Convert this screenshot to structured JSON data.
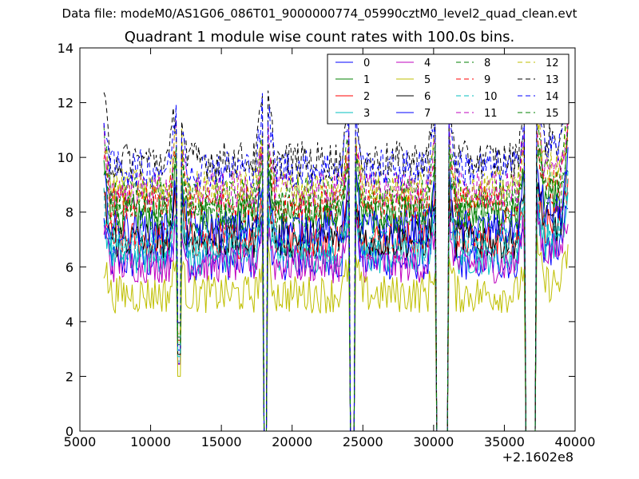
{
  "figure": {
    "suptitle": "Data file: modeM0/AS1G06_086T01_9000000774_05990cztM0_level2_quad_clean.evt",
    "title": "Quadrant 1 module wise count rates with 100.0s bins.",
    "x_offset_label": "+2.1602e8"
  },
  "chart_data": {
    "type": "line",
    "title": "Quadrant 1 module wise count rates with 100.0s bins.",
    "xlabel": "",
    "ylabel": "",
    "xlim": [
      5000,
      40000
    ],
    "ylim": [
      0,
      14
    ],
    "x_offset": 216020000,
    "x_ticks": [
      5000,
      10000,
      15000,
      20000,
      25000,
      30000,
      35000,
      40000
    ],
    "x_tick_labels": [
      "5000",
      "10000",
      "15000",
      "20000",
      "25000",
      "30000",
      "35000",
      "40000"
    ],
    "y_ticks": [
      0,
      2,
      4,
      6,
      8,
      10,
      12,
      14
    ],
    "y_tick_labels": [
      "0",
      "2",
      "4",
      "6",
      "8",
      "10",
      "12",
      "14"
    ],
    "grid": false,
    "legend_position": "top-right",
    "bin_size_s": 100,
    "segments": [
      [
        6700,
        11800
      ],
      [
        12100,
        17900
      ],
      [
        18300,
        24000
      ],
      [
        24500,
        30100
      ],
      [
        31100,
        36400
      ],
      [
        37300,
        39500
      ]
    ],
    "series": [
      {
        "name": "0",
        "color": "#0000ff",
        "style": "solid",
        "level": 6.2
      },
      {
        "name": "1",
        "color": "#008000",
        "style": "solid",
        "level": 7.9
      },
      {
        "name": "2",
        "color": "#ff0000",
        "style": "solid",
        "level": 7.0
      },
      {
        "name": "3",
        "color": "#00bfbf",
        "style": "solid",
        "level": 6.4
      },
      {
        "name": "4",
        "color": "#bf00bf",
        "style": "solid",
        "level": 6.1
      },
      {
        "name": "5",
        "color": "#bfbf00",
        "style": "solid",
        "level": 5.0
      },
      {
        "name": "6",
        "color": "#000000",
        "style": "solid",
        "level": 7.0
      },
      {
        "name": "7",
        "color": "#0000ff",
        "style": "solid",
        "level": 7.4
      },
      {
        "name": "8",
        "color": "#008000",
        "style": "dashed",
        "level": 8.6
      },
      {
        "name": "9",
        "color": "#ff0000",
        "style": "dashed",
        "level": 8.3
      },
      {
        "name": "10",
        "color": "#00bfbf",
        "style": "dashed",
        "level": 6.8
      },
      {
        "name": "11",
        "color": "#bf00bf",
        "style": "dashed",
        "level": 8.8
      },
      {
        "name": "12",
        "color": "#bfbf00",
        "style": "dashed",
        "level": 8.9
      },
      {
        "name": "13",
        "color": "#000000",
        "style": "dashed",
        "level": 9.9
      },
      {
        "name": "14",
        "color": "#0000ff",
        "style": "dashed",
        "level": 9.6
      },
      {
        "name": "15",
        "color": "#008000",
        "style": "dashed",
        "level": 8.0
      }
    ]
  }
}
